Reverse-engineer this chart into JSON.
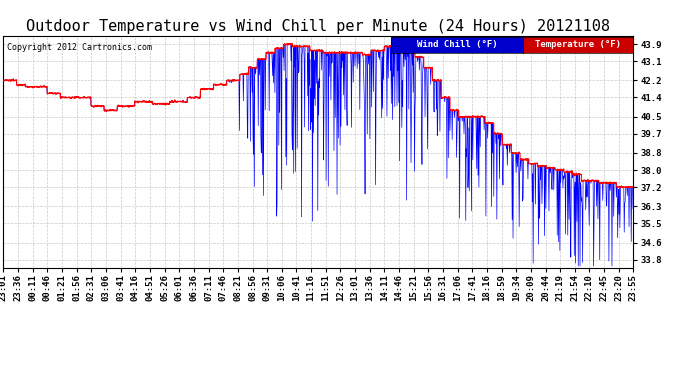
{
  "title": "Outdoor Temperature vs Wind Chill per Minute (24 Hours) 20121108",
  "copyright": "Copyright 2012 Cartronics.com",
  "ylabel_right_ticks": [
    43.9,
    43.1,
    42.2,
    41.4,
    40.5,
    39.7,
    38.8,
    38.0,
    37.2,
    36.3,
    35.5,
    34.6,
    33.8
  ],
  "ylim": [
    33.4,
    44.3
  ],
  "legend_wind_chill": "Wind Chill (°F)",
  "legend_temperature": "Temperature (°F)",
  "wind_chill_color": "#0000ff",
  "temperature_color": "#ff0000",
  "legend_wc_bg": "#0000cc",
  "legend_temp_bg": "#cc0000",
  "background_color": "#ffffff",
  "grid_color": "#bbbbbb",
  "title_fontsize": 11,
  "axis_fontsize": 6.5,
  "n_minutes": 1440,
  "x_tick_labels": [
    "23:01",
    "23:36",
    "00:11",
    "00:46",
    "01:21",
    "01:56",
    "02:31",
    "03:06",
    "03:41",
    "04:16",
    "04:51",
    "05:26",
    "06:01",
    "06:36",
    "07:11",
    "07:46",
    "08:21",
    "08:56",
    "09:31",
    "10:06",
    "10:41",
    "11:16",
    "11:51",
    "12:26",
    "13:01",
    "13:36",
    "14:11",
    "14:46",
    "15:21",
    "15:56",
    "16:31",
    "17:06",
    "17:41",
    "18:16",
    "18:59",
    "19:34",
    "20:09",
    "20:44",
    "21:19",
    "21:54",
    "22:10",
    "22:45",
    "23:20",
    "23:55"
  ]
}
